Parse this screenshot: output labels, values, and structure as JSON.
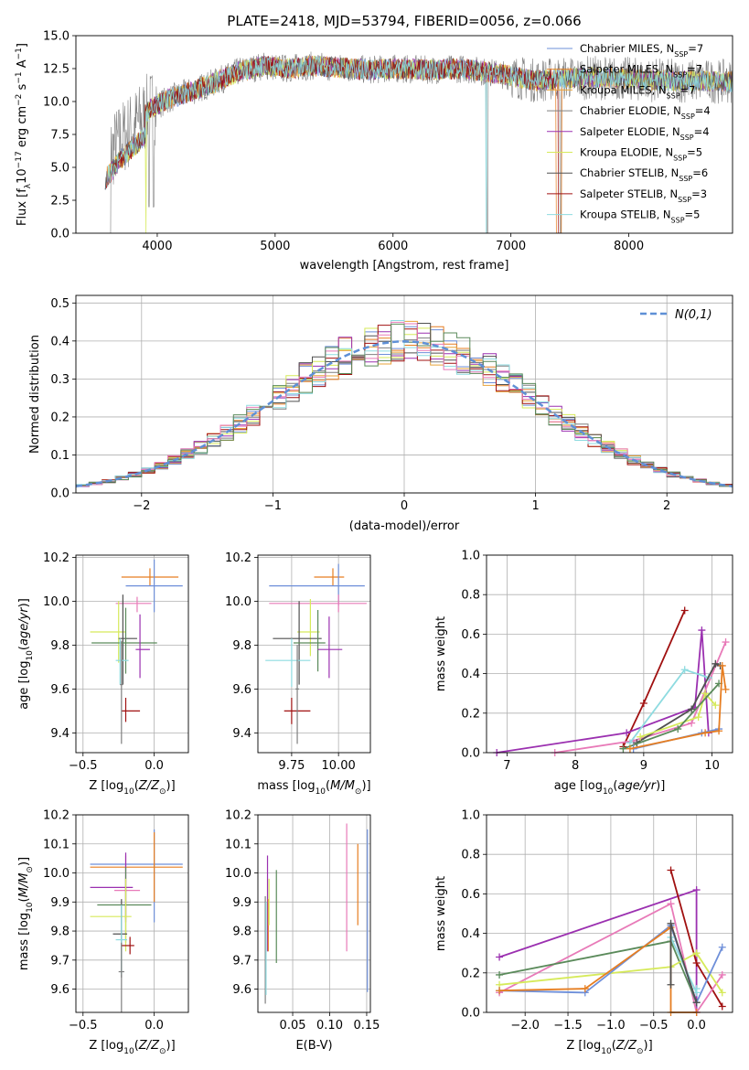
{
  "colors": {
    "CM": "#6e8fd9",
    "SM": "#e67e22",
    "KM": "#e8a33a",
    "CE": "#7f7f7f",
    "SE": "#9b30b0",
    "KE": "#d6ea5a",
    "CS": "#505050",
    "SS": "#a01010",
    "KS": "#8edbe0",
    "pink": "#e87ab8",
    "green": "#5a8a5a",
    "dash": "#5f90d6"
  },
  "chart_data": [
    {
      "id": "spectrum",
      "type": "line",
      "title": "PLATE=2418, MJD=53794, FIBERID=0056, z=0.066",
      "xlabel": "wavelength [Angstrom, rest frame]",
      "ylabel": "Flux [f$_\\lambda$10$^{-17}$ erg cm$^{-2}$ s$^{-1}$ A$^{-1}$]",
      "xlim": [
        3310,
        8880
      ],
      "ylim": [
        0,
        15
      ],
      "xticks": [
        4000,
        5000,
        6000,
        7000,
        8000
      ],
      "yticks": [
        0.0,
        2.5,
        5.0,
        7.5,
        10.0,
        12.5,
        15.0
      ],
      "ytick_labels": [
        "0.0",
        "2.5",
        "5.0",
        "7.5",
        "10.0",
        "12.5",
        "15.0"
      ],
      "legend_pos": "upper right",
      "series": [
        {
          "name": "Chabrier MILES, N",
          "n": "7",
          "color": "CM"
        },
        {
          "name": "Salpeter MILES, N",
          "n": "7",
          "color": "SM"
        },
        {
          "name": "Kroupa MILES, N",
          "n": "7",
          "color": "KM"
        },
        {
          "name": "Chabrier ELODIE, N",
          "n": "4",
          "color": "CE"
        },
        {
          "name": "Salpeter ELODIE, N",
          "n": "4",
          "color": "SE"
        },
        {
          "name": "Kroupa ELODIE, N",
          "n": "5",
          "color": "KE"
        },
        {
          "name": "Chabrier STELIB, N",
          "n": "6",
          "color": "CS"
        },
        {
          "name": "Salpeter STELIB, N",
          "n": "3",
          "color": "SS"
        },
        {
          "name": "Kroupa STELIB, N",
          "n": "5",
          "color": "KS"
        }
      ],
      "continuum": {
        "x": [
          3550,
          3700,
          3850,
          3950,
          4100,
          4300,
          4500,
          4700,
          4900,
          5100,
          5300,
          5500,
          5800,
          6000,
          6300,
          6600,
          6900,
          7200,
          7500,
          7800,
          8300,
          8880
        ],
        "y": [
          5.5,
          7.2,
          8.5,
          9.5,
          10.2,
          10.8,
          11.5,
          12.3,
          12.7,
          12.5,
          12.7,
          12.6,
          12.4,
          12.5,
          12.4,
          12.5,
          12.1,
          11.6,
          11.8,
          11.8,
          11.6,
          11.5
        ]
      }
    },
    {
      "id": "residuals",
      "type": "histogram",
      "xlabel": "(data-model)/error",
      "ylabel": "Normed distribution",
      "xlim": [
        -2.5,
        2.5
      ],
      "ylim": [
        0,
        0.52
      ],
      "xticks": [
        -2,
        -1,
        0,
        1,
        2
      ],
      "xtick_labels": [
        "−2",
        "−1",
        "0",
        "1",
        "2"
      ],
      "yticks": [
        0.0,
        0.1,
        0.2,
        0.3,
        0.4,
        0.5
      ],
      "legend": "N(0,1)",
      "bin_width": 0.1
    },
    {
      "id": "age_vs_Z",
      "type": "errorbar",
      "xlabel": "Z [log10(Z/Z⊙)]",
      "ylabel": "age [log10(age/yr)]",
      "xlim": [
        -0.55,
        0.24
      ],
      "ylim": [
        9.31,
        10.21
      ],
      "xticks": [
        -0.5,
        0.0
      ],
      "xtick_labels": [
        "−0.5",
        "0.0"
      ],
      "yticks": [
        9.4,
        9.6,
        9.8,
        10.0,
        10.2
      ],
      "points": [
        {
          "c": "SM",
          "x": -0.03,
          "xe": [
            0.2,
            0.2
          ],
          "y": 10.11,
          "ye": [
            0.04,
            0.04
          ]
        },
        {
          "c": "CM",
          "x": 0.0,
          "xe": [
            0.2,
            0.2
          ],
          "y": 10.07,
          "ye": [
            0.12,
            0.12
          ]
        },
        {
          "c": "pink",
          "x": -0.12,
          "xe": [
            0.15,
            0.1
          ],
          "y": 9.99,
          "ye": [
            0.04,
            0.03
          ]
        },
        {
          "c": "KE",
          "x": -0.25,
          "xe": [
            0.2,
            0.05
          ],
          "y": 9.86,
          "ye": [
            0.14,
            0.14
          ]
        },
        {
          "c": "CS",
          "x": -0.22,
          "xe": [
            0.03,
            0.1
          ],
          "y": 9.83,
          "ye": [
            0.21,
            0.2
          ]
        },
        {
          "c": "green",
          "x": -0.2,
          "xe": [
            0.24,
            0.22
          ],
          "y": 9.81,
          "ye": [
            0.14,
            0.16
          ]
        },
        {
          "c": "SE",
          "x": -0.1,
          "xe": [
            0.03,
            0.07
          ],
          "y": 9.78,
          "ye": [
            0.13,
            0.16
          ]
        },
        {
          "c": "KS",
          "x": -0.24,
          "xe": [
            0.03,
            0.06
          ],
          "y": 9.73,
          "ye": [
            0.11,
            0.1
          ]
        },
        {
          "c": "SS",
          "x": -0.2,
          "xe": [
            0.03,
            0.1
          ],
          "y": 9.5,
          "ye": [
            0.05,
            0.06
          ]
        },
        {
          "c": "CE",
          "x": -0.23,
          "xe": [
            0.01,
            0.01
          ],
          "y": 9.62,
          "ye": [
            0.27,
            0.2
          ]
        }
      ]
    },
    {
      "id": "age_vs_mass",
      "type": "errorbar",
      "xlabel": "mass [log10(M/M⊙)]",
      "xlim": [
        9.57,
        10.17
      ],
      "ylim": [
        9.31,
        10.21
      ],
      "xticks": [
        9.75,
        10.0
      ],
      "xtick_labels": [
        "9.75",
        "10.00"
      ],
      "yticks": [
        9.4,
        9.6,
        9.8,
        10.0,
        10.2
      ],
      "points": [
        {
          "c": "SM",
          "x": 9.97,
          "xe": [
            0.1,
            0.06
          ],
          "y": 10.11,
          "ye": [
            0.04,
            0.04
          ]
        },
        {
          "c": "CM",
          "x": 10.0,
          "xe": [
            0.37,
            0.14
          ],
          "y": 10.07,
          "ye": [
            0.09,
            0.1
          ]
        },
        {
          "c": "pink",
          "x": 10.0,
          "xe": [
            0.37,
            0.15
          ],
          "y": 9.99,
          "ye": [
            0.04,
            0.04
          ]
        },
        {
          "c": "KE",
          "x": 9.85,
          "xe": [
            0.07,
            0.05
          ],
          "y": 9.86,
          "ye": [
            0.11,
            0.15
          ]
        },
        {
          "c": "CS",
          "x": 9.79,
          "xe": [
            0.14,
            0.12
          ],
          "y": 9.83,
          "ye": [
            0.21,
            0.17
          ]
        },
        {
          "c": "green",
          "x": 9.89,
          "xe": [
            0.13,
            0.04
          ],
          "y": 9.81,
          "ye": [
            0.13,
            0.15
          ]
        },
        {
          "c": "SE",
          "x": 9.95,
          "xe": [
            0.06,
            0.07
          ],
          "y": 9.78,
          "ye": [
            0.13,
            0.15
          ]
        },
        {
          "c": "KS",
          "x": 9.75,
          "xe": [
            0.14,
            0.1
          ],
          "y": 9.73,
          "ye": [
            0.12,
            0.1
          ]
        },
        {
          "c": "SS",
          "x": 9.75,
          "xe": [
            0.04,
            0.1
          ],
          "y": 9.5,
          "ye": [
            0.06,
            0.06
          ]
        },
        {
          "c": "CE",
          "x": 9.78,
          "xe": [
            0.01,
            0.01
          ],
          "y": 9.6,
          "ye": [
            0.25,
            0.2
          ]
        }
      ]
    },
    {
      "id": "weight_vs_age",
      "type": "line",
      "xlabel": "age (log10(age/yr))",
      "ylabel": "mass weight",
      "xlim": [
        6.7,
        10.3
      ],
      "ylim": [
        0,
        1
      ],
      "xticks": [
        7,
        8,
        9,
        10
      ],
      "yticks": [
        0.0,
        0.2,
        0.4,
        0.6,
        0.8,
        1.0
      ],
      "series": [
        {
          "c": "SS",
          "x": [
            8.7,
            9.0,
            9.6
          ],
          "y": [
            0.03,
            0.25,
            0.72
          ]
        },
        {
          "c": "SE",
          "x": [
            6.85,
            8.75,
            9.75,
            9.85,
            9.95
          ],
          "y": [
            0.0,
            0.1,
            0.23,
            0.62,
            0.1
          ]
        },
        {
          "c": "pink",
          "x": [
            7.7,
            8.85,
            9.7,
            10.2
          ],
          "y": [
            0.0,
            0.06,
            0.15,
            0.56
          ]
        },
        {
          "c": "KS",
          "x": [
            8.8,
            9.6,
            9.95
          ],
          "y": [
            0.05,
            0.42,
            0.38
          ]
        },
        {
          "c": "CS",
          "x": [
            8.9,
            9.7,
            10.05,
            10.12
          ],
          "y": [
            0.05,
            0.22,
            0.45,
            0.44
          ]
        },
        {
          "c": "KE",
          "x": [
            8.95,
            9.8,
            9.9,
            10.05
          ],
          "y": [
            0.08,
            0.18,
            0.3,
            0.24
          ]
        },
        {
          "c": "green",
          "x": [
            8.7,
            9.5,
            10.1
          ],
          "y": [
            0.02,
            0.12,
            0.35
          ]
        },
        {
          "c": "CM",
          "x": [
            8.85,
            9.85,
            10.1
          ],
          "y": [
            0.02,
            0.1,
            0.12
          ]
        },
        {
          "c": "SM",
          "x": [
            8.8,
            9.9,
            10.1,
            10.15,
            10.2
          ],
          "y": [
            0.02,
            0.1,
            0.11,
            0.44,
            0.32
          ]
        }
      ]
    },
    {
      "id": "mass_vs_Z",
      "type": "errorbar",
      "xlabel": "Z [log10(Z/Z⊙)]",
      "ylabel": "mass [log10(M/M⊙)]",
      "xlim": [
        -0.55,
        0.24
      ],
      "ylim": [
        9.52,
        10.2
      ],
      "xticks": [
        -0.5,
        0.0
      ],
      "xtick_labels": [
        "−0.5",
        "0.0"
      ],
      "yticks": [
        9.6,
        9.7,
        9.8,
        9.9,
        10.0,
        10.1,
        10.2
      ],
      "points": [
        {
          "c": "CM",
          "x": 0.0,
          "xe": [
            0.45,
            0.2
          ],
          "y": 10.03,
          "ye": [
            0.2,
            0.12
          ]
        },
        {
          "c": "SM",
          "x": 0.0,
          "xe": [
            0.45,
            0.2
          ],
          "y": 10.02,
          "ye": [
            0.12,
            0.12
          ]
        },
        {
          "c": "pink",
          "x": -0.2,
          "xe": [
            0.08,
            0.1
          ],
          "y": 9.94,
          "ye": [
            0.1,
            0.12
          ]
        },
        {
          "c": "SE",
          "x": -0.2,
          "xe": [
            0.25,
            0.05
          ],
          "y": 9.95,
          "ye": [
            0.12,
            0.12
          ]
        },
        {
          "c": "green",
          "x": -0.2,
          "xe": [
            0.2,
            0.18
          ],
          "y": 9.89,
          "ye": [
            0.13,
            0.13
          ]
        },
        {
          "c": "KE",
          "x": -0.2,
          "xe": [
            0.25,
            0.04
          ],
          "y": 9.85,
          "ye": [
            0.12,
            0.13
          ]
        },
        {
          "c": "CS",
          "x": -0.23,
          "xe": [
            0.06,
            0.04
          ],
          "y": 9.79,
          "ye": [
            0.15,
            0.12
          ]
        },
        {
          "c": "KS",
          "x": -0.23,
          "xe": [
            0.04,
            0.04
          ],
          "y": 9.77,
          "ye": [
            0.12,
            0.12
          ]
        },
        {
          "c": "SS",
          "x": -0.17,
          "xe": [
            0.06,
            0.03
          ],
          "y": 9.75,
          "ye": [
            0.03,
            0.03
          ]
        },
        {
          "c": "CE",
          "x": -0.23,
          "xe": [
            0.02,
            0.02
          ],
          "y": 9.66,
          "ye": [
            0.14,
            0.1
          ]
        }
      ]
    },
    {
      "id": "mass_vs_EBV",
      "type": "errorbar",
      "xlabel": "E(B-V)",
      "xlim": [
        0.003,
        0.155
      ],
      "ylim": [
        9.52,
        10.2
      ],
      "xticks": [
        0.05,
        0.1,
        0.15
      ],
      "xtick_labels": [
        "0.05",
        "0.10",
        "0.15"
      ],
      "yticks": [
        9.6,
        9.7,
        9.8,
        9.9,
        10.0,
        10.1,
        10.2
      ],
      "points": [
        {
          "c": "CE",
          "x": 0.013,
          "ylo": 9.55,
          "yhi": 9.92
        },
        {
          "c": "KS",
          "x": 0.014,
          "ylo": 9.58,
          "yhi": 9.9
        },
        {
          "c": "SE",
          "x": 0.016,
          "ylo": 9.73,
          "yhi": 10.06
        },
        {
          "c": "SM",
          "x": 0.017,
          "ylo": 9.73,
          "yhi": 9.91
        },
        {
          "c": "KE",
          "x": 0.018,
          "ylo": 9.82,
          "yhi": 9.98
        },
        {
          "c": "green",
          "x": 0.028,
          "ylo": 9.69,
          "yhi": 10.01
        },
        {
          "c": "pink",
          "x": 0.123,
          "ylo": 9.73,
          "yhi": 10.17
        },
        {
          "c": "SM",
          "x": 0.138,
          "ylo": 9.82,
          "yhi": 10.1
        },
        {
          "c": "CM",
          "x": 0.151,
          "ylo": 9.59,
          "yhi": 10.15
        }
      ]
    },
    {
      "id": "weight_vs_Z",
      "type": "line",
      "xlabel": "Z [log10(Z/Z⊙)]",
      "ylabel": "mass weight",
      "xlim": [
        -2.45,
        0.42
      ],
      "ylim": [
        0,
        1
      ],
      "xticks": [
        -2.0,
        -1.5,
        -1.0,
        -0.5,
        0.0
      ],
      "xtick_labels": [
        "−2.0",
        "−1.5",
        "−1.0",
        "−0.5",
        "0.0"
      ],
      "yticks": [
        0.0,
        0.2,
        0.4,
        0.6,
        0.8,
        1.0
      ],
      "series": [
        {
          "c": "SE",
          "x": [
            -2.3,
            0.0,
            0.0
          ],
          "y": [
            0.28,
            0.62,
            0.0
          ]
        },
        {
          "c": "SS",
          "x": [
            -0.3,
            0.0,
            0.3
          ],
          "y": [
            0.72,
            0.25,
            0.03
          ]
        },
        {
          "c": "pink",
          "x": [
            -2.3,
            -0.3,
            0.0,
            0.3
          ],
          "y": [
            0.1,
            0.55,
            0.0,
            0.19
          ]
        },
        {
          "c": "green",
          "x": [
            -2.3,
            -0.3,
            0.0
          ],
          "y": [
            0.19,
            0.36,
            0.05
          ]
        },
        {
          "c": "KE",
          "x": [
            -2.3,
            -0.3,
            0.0,
            0.3
          ],
          "y": [
            0.14,
            0.23,
            0.3,
            0.1
          ]
        },
        {
          "c": "CM",
          "x": [
            -2.3,
            -1.3,
            -0.3,
            0.0,
            0.3
          ],
          "y": [
            0.11,
            0.1,
            0.44,
            0.05,
            0.33
          ]
        },
        {
          "c": "SM",
          "x": [
            -2.3,
            -1.3,
            -0.3,
            -0.3,
            0.0
          ],
          "y": [
            0.11,
            0.12,
            0.43,
            0.0,
            0.0
          ]
        },
        {
          "c": "KS",
          "x": [
            -0.3,
            0.0,
            0.0
          ],
          "y": [
            0.38,
            0.1,
            0.12
          ]
        },
        {
          "c": "CS",
          "x": [
            -0.3,
            -0.3,
            0.0
          ],
          "y": [
            0.14,
            0.45,
            0.05
          ]
        }
      ]
    }
  ]
}
